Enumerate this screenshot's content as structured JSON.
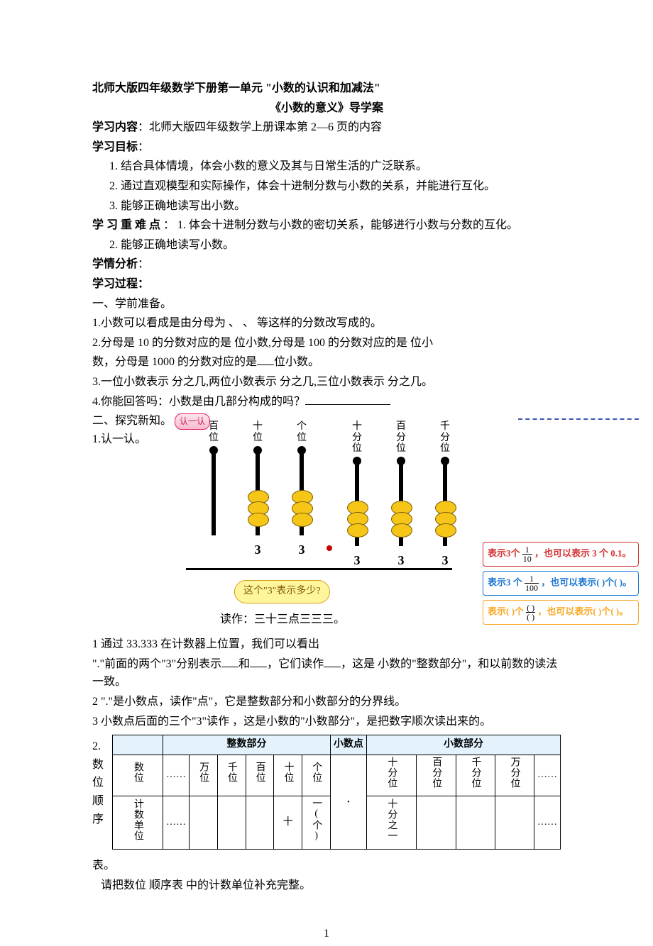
{
  "doc": {
    "title_line1": "北师大版四年级数学下册第一单元 \"小数的认识和加减法\"",
    "title_line2": "《小数的意义》导学案",
    "content_label": "学习内容",
    "content_text": "：北师大版四年级数学上册课本第 2—6 页的内容",
    "goal_label": "学习目标",
    "goal_colon": "：",
    "goals": [
      "1. 结合具体情境，体会小数的意义及其与日常生活的广泛联系。",
      "2. 通过直观模型和实际操作，体会十进制分数与小数的关系，并能进行互化。",
      "3. 能够正确地读写出小数。"
    ],
    "diff_label": "学 习 重 难 点",
    "diff1": " ： 1. 体会十进制分数与小数的密切关系，能够进行小数与分数的互化。",
    "diff2": "2. 能够正确地读写小数。",
    "analysis_label": "学情分析",
    "analysis_colon": "：",
    "process_label": "学习过程：",
    "sec1_title": "一、学前准备。",
    "prep": {
      "q1_a": "1.小数可以看成是由分母为 ",
      "q1_b": "、 ",
      "q1_c": "、 ",
      "q1_d": "等这样的分数改写成的。",
      "q2_a": "2.分母是 10 的分数对应的是 ",
      "q2_b": "位小数,分母是 100 的分数对应的是 ",
      "q2_c": "位小",
      "q2_d": "数，分母是 1000 的分数对应的是",
      "q2_e": "位小数。",
      "q3_a": "3.一位小数表示 ",
      "q3_b": "分之几,两位小数表示 ",
      "q3_c": "分之几,三位小数表示 ",
      "q3_d": "分之几。",
      "q4_a": "4.你能回答吗：小数是由几部分构成的吗？"
    },
    "sec2_title": "二、探究新知。",
    "renyiren_label": "认一认",
    "item2_1": "1.认一认。",
    "abacus": {
      "columns": [
        "百位",
        "十位",
        "个位",
        "十分位",
        "百分位",
        "千分位"
      ],
      "digits": [
        "",
        "3",
        "3",
        "3",
        "3",
        "3"
      ],
      "beads": [
        0,
        3,
        3,
        3,
        3,
        3
      ],
      "bead_fill": "#f5c518",
      "bead_stroke": "#7a5a00",
      "dot_color": "#cc0000",
      "speech": "这个\"3\"表示多少?",
      "reading": "读作：三十三点三三三。"
    },
    "callouts": [
      {
        "color": "#d32f2f",
        "text_a": "表示3个",
        "frac_num": "1",
        "frac_den": "10",
        "text_b": "，也可以表示 3 个 0.1。"
      },
      {
        "color": "#1976d2",
        "text_a": "表示3 个",
        "frac_num": "1",
        "frac_den": "100",
        "text_b": "，也可以表示(  )个(  )。"
      },
      {
        "color": "#f9a825",
        "text_a": "表示(  )个",
        "frac_num": "",
        "frac_den": "",
        "text_b": "，也可以表示(  )个(  )。",
        "empty_frac": true
      }
    ],
    "para1_a": "1    通过 33.333 在计数器上位置，我们可以看出",
    "para1_b": "\".\"前面的两个\"3\"分别表示",
    "para1_c": "和",
    "para1_d": "，它们读作",
    "para1_e": "，这是 小数的\"整数部分\"，和以前数的读法一致。",
    "para2": "2    \".\"是小数点，读作\"点\"，它是整数部分和小数部分的分界线。",
    "para3_a": "3    小数点后面的三个\"3\"读作 ",
    "para3_b": "，这是小数的\"小数部分\"，是把数字顺次读出来的。",
    "item2_2": "2.数位顺序表。",
    "item2_2_text": "   请把数位 顺序表 中的计数单位补充完整。",
    "pvtable": {
      "headers": [
        "",
        "整数部分",
        "小数点",
        "小数部分"
      ],
      "row1_label": "数位",
      "row1_cells": [
        "……",
        "万位",
        "千位",
        "百位",
        "十位",
        "个位",
        "",
        "十分位",
        "百分位",
        "千分位",
        "万分位",
        "……"
      ],
      "row2_label": "计数单位",
      "row2_cells": [
        "……",
        "",
        "",
        "",
        "十",
        "一(个)",
        "·",
        "十分之一",
        "",
        "",
        "",
        "……"
      ],
      "header_bg": "#e3f2fd"
    },
    "page_number": "1"
  }
}
